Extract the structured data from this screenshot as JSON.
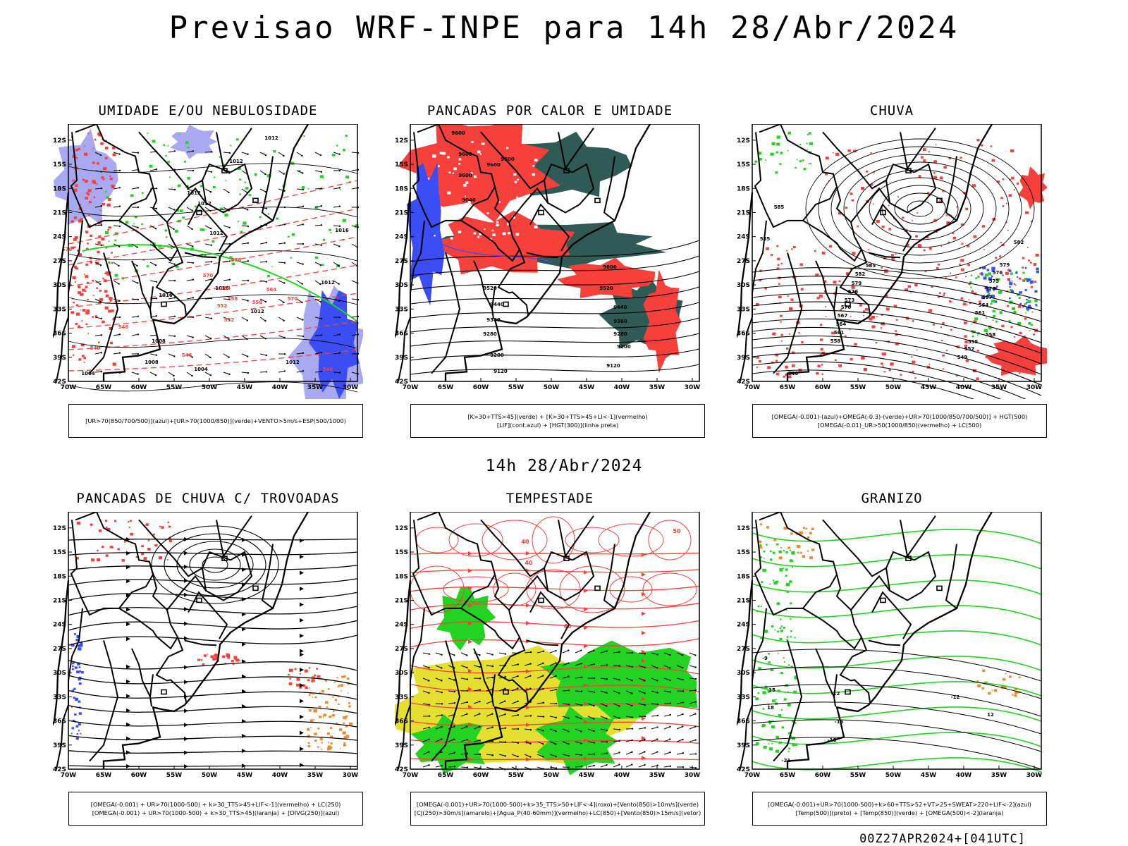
{
  "title": "Previsao WRF-INPE  para 14h 28/Abr/2024",
  "subtitle": "14h 28/Abr/2024",
  "footer": "00Z27APR2024+[041UTC]",
  "axes": {
    "lat_labels": [
      "12S",
      "15S",
      "18S",
      "21S",
      "24S",
      "27S",
      "30S",
      "33S",
      "36S",
      "39S",
      "42S"
    ],
    "lon_labels": [
      "70W",
      "65W",
      "60W",
      "55W",
      "50W",
      "45W",
      "40W",
      "35W",
      "30W"
    ]
  },
  "colors": {
    "blue": "#3b4df5",
    "lightblue": "#a9a9f2",
    "green": "#22d322",
    "red": "#f5403c",
    "darkteal": "#2f5a55",
    "yellow": "#e4df30",
    "orange": "#f08a2a",
    "violet": "#6c3fd0"
  },
  "panels": [
    {
      "id": "umidade",
      "title": "UMIDADE E/OU NEBULOSIDADE",
      "legend": [
        "[UR>70(850/700/500)](azul)+[UR>70(1000/850)](verde)+VENTO>5m/s+ESP(500/1000)"
      ],
      "contour_labels": [
        "1012",
        "1012",
        "1012",
        "1012",
        "1012",
        "1016",
        "1016",
        "1012",
        "1008",
        "1004",
        "1004",
        "1008",
        "1012",
        "1016",
        "1012"
      ],
      "red_labels": [
        "576",
        "570",
        "564",
        "558",
        "552",
        "546",
        "576",
        "570",
        "564",
        "558",
        "552",
        "546",
        "540",
        "546"
      ]
    },
    {
      "id": "pancadas_calor",
      "title": "PANCADAS POR CALOR E UMIDADE",
      "legend": [
        "[K>30+TTS>45](verde) + [K>30+TTS>45+LI<-1](vermelho)",
        "[LIF](cont.azul) + [HGT(300)](linha preta)"
      ],
      "contour_labels": [
        "9600",
        "9600",
        "9600",
        "9600",
        "9600",
        "9520",
        "9440",
        "9360",
        "9280",
        "9200",
        "9120",
        "9040",
        "9520",
        "9440",
        "9360",
        "9280",
        "9200",
        "9120",
        "9600"
      ]
    },
    {
      "id": "chuva",
      "title": "CHUVA",
      "legend": [
        "[OMEGA(-0.001)-(azul)+OMEGA(-0.3)-(verde)+UR>70(1000/850/700/500)] + HGT(500)",
        "[OMEGA(-0.01)_UR>50(1000/850)(vermelho) + LC(500)"
      ],
      "contour_labels": [
        "585",
        "585",
        "582",
        "579",
        "576",
        "573",
        "570",
        "567",
        "564",
        "561",
        "558",
        "555",
        "552",
        "549",
        "546",
        "585",
        "582",
        "579",
        "576",
        "573",
        "570",
        "567",
        "564",
        "561",
        "558"
      ]
    },
    {
      "id": "trovoadas",
      "title": "PANCADAS DE CHUVA C/ TROVOADAS",
      "legend": [
        "[OMEGA(-0.001) + UR>70(1000-500) + k>30_TTS>45+LIF<-1](vermelho) + LC(250)",
        "[OMEGA(-0.001) + UR>70(1000-500) + k>30_TTS>45](laranja) + [DIVG(250)](azul)"
      ],
      "contour_labels": []
    },
    {
      "id": "tempestade",
      "title": "TEMPESTADE",
      "legend": [
        "[OMEGA(-0.001)+UR>70(1000-500)+k>35_TTS>50+LIF<-4](roxo)+[Vento(850)>10m/s](verde)",
        "[CJ(250)>30m/s](amarelo)+[Agua_P(40-60mm)](vermelho)+LC(850)+[Vento(850)>15m/s](vetor)"
      ],
      "contour_labels": [
        "40",
        "40",
        "50",
        "40"
      ]
    },
    {
      "id": "granizo",
      "title": "GRANIZO",
      "legend": [
        "[OMEGA(-0.001)+UR>70(1000-500)+k>60+TTS>52+VT>25+SWEAT>220+LIF<-2](azul)",
        "[Temp(500)](preto) + [Temp(850)](verde) + [OMEGA(500)<-2](laranja)"
      ],
      "contour_labels": [
        "-12",
        "-12",
        "-15",
        "-18",
        "-21",
        "-9",
        "15",
        "18",
        "12"
      ]
    }
  ]
}
